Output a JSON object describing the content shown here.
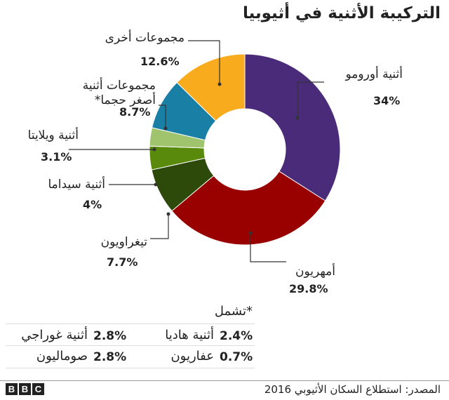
{
  "chart_data": {
    "type": "pie",
    "title": "التركيبة الأثنية في أثيوبيا",
    "donut": true,
    "slices": [
      {
        "label": "أثنية أورومو",
        "value": 34,
        "display": "34%",
        "color": "#4a2b7a"
      },
      {
        "label": "أمهريون",
        "value": 29.8,
        "display": "29.8%",
        "color": "#990000"
      },
      {
        "label": "تيغراويون",
        "value": 7.7,
        "display": "7.7%",
        "color": "#2e4a0b"
      },
      {
        "label": "أثنية سيداما",
        "value": 4,
        "display": "4%",
        "color": "#5a8a0c"
      },
      {
        "label": "أثنية ويلايتا",
        "value": 3.1,
        "display": "3.1%",
        "color": "#a0c46e"
      },
      {
        "label": "مجموعات أثنية أصغر حجما*",
        "label_line1": "مجموعات أثنية",
        "label_line2": "أصغر حجما*",
        "value": 8.7,
        "display": "8.7%",
        "color": "#1a7fa5"
      },
      {
        "label": "مجموعات أخرى",
        "value": 12.6,
        "display": "12.6%",
        "color": "#f8ab1d"
      }
    ]
  },
  "footnote": {
    "title": "*تشمل",
    "rows": [
      {
        "right_pct": "2.4%",
        "right_label": "أثنية هاديا",
        "left_pct": "2.8%",
        "left_label": "أثنية غوراجي"
      },
      {
        "right_pct": "0.7%",
        "right_label": "عفاريون",
        "left_pct": "2.8%",
        "left_label": "صوماليون"
      }
    ]
  },
  "source": "المصدر: استطلاع السكان الأثيوبي 2016",
  "logo": "BBC"
}
